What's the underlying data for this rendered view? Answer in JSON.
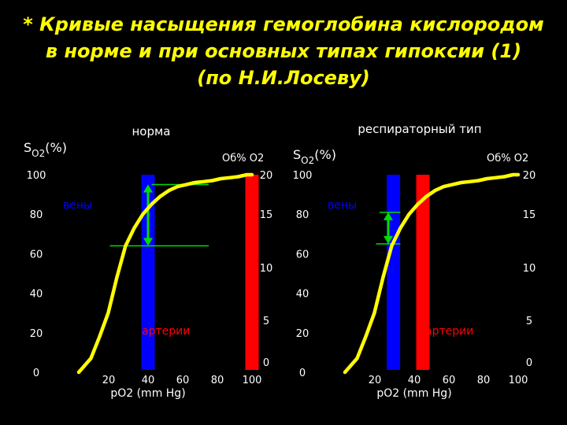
{
  "slide": {
    "title_lines": [
      "* Кривые насыщения гемоглобина кислородом",
      "в норме и при основных типах гипоксии (1)",
      "(по Н.И.Лосеву)"
    ],
    "colors": {
      "curve": "#ffff00",
      "veins": "#0000ff",
      "arteries": "#ff0000",
      "marker": "#00dd00",
      "text": "#ffffff",
      "title": "#ffff00"
    }
  },
  "chart_data": [
    {
      "type": "line",
      "title": "норма",
      "ylabel_main": "S",
      "ylabel_sub": "O2",
      "ylabel_suffix": "(%)",
      "y2label": "Об% O2",
      "xlabel": "pO2 (mm Hg)",
      "x_ticks": [
        "20",
        "40",
        "60",
        "80",
        "100"
      ],
      "y_ticks": [
        "100",
        "80",
        "60",
        "40",
        "20",
        "0"
      ],
      "y2_ticks": [
        "20",
        "15",
        "10",
        "5",
        "0"
      ],
      "vein_label": "вены",
      "artery_label": "артерии",
      "series": [
        {
          "x": [
            0,
            7,
            12,
            17,
            22,
            27,
            32,
            37,
            42,
            47,
            52,
            57,
            62,
            67,
            72,
            77,
            82,
            87,
            92,
            97,
            100
          ],
          "y": [
            0,
            7,
            18,
            30,
            48,
            64,
            73,
            80,
            85,
            89,
            92,
            94,
            95,
            96,
            96.5,
            97,
            98,
            98.5,
            99,
            100,
            100
          ]
        }
      ],
      "vein_po2": 40,
      "artery_po2": 100,
      "av_difference": {
        "y_from": 95,
        "y_to": 64
      }
    },
    {
      "type": "line",
      "title": "респираторный тип",
      "ylabel_main": "S",
      "ylabel_sub": "O2",
      "ylabel_suffix": "(%)",
      "y2label": "Об% O2",
      "xlabel": "pO2 (mm Hg)",
      "x_ticks": [
        "20",
        "40",
        "60",
        "80",
        "100"
      ],
      "y_ticks": [
        "100",
        "80",
        "60",
        "40",
        "20",
        "0"
      ],
      "y2_ticks": [
        "20",
        "15",
        "10",
        "5",
        "0"
      ],
      "vein_label": "вены",
      "artery_label": "артерии",
      "series": [
        {
          "x": [
            0,
            7,
            12,
            17,
            22,
            27,
            32,
            37,
            42,
            47,
            52,
            57,
            62,
            67,
            72,
            77,
            82,
            87,
            92,
            97,
            100
          ],
          "y": [
            0,
            7,
            18,
            30,
            48,
            64,
            73,
            80,
            85,
            89,
            92,
            94,
            95,
            96,
            96.5,
            97,
            98,
            98.5,
            99,
            100,
            100
          ]
        }
      ],
      "vein_po2": 28,
      "artery_po2": 45,
      "av_difference": {
        "y_from": 81,
        "y_to": 65
      }
    }
  ]
}
